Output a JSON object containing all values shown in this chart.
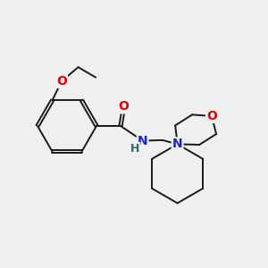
{
  "background_color": "#efefef",
  "bond_color": "#1a1a1a",
  "atom_colors": {
    "O": "#e00000",
    "N": "#2020cc",
    "H": "#207070",
    "C": "#1a1a1a"
  },
  "figsize": [
    3.0,
    3.0
  ],
  "dpi": 100
}
